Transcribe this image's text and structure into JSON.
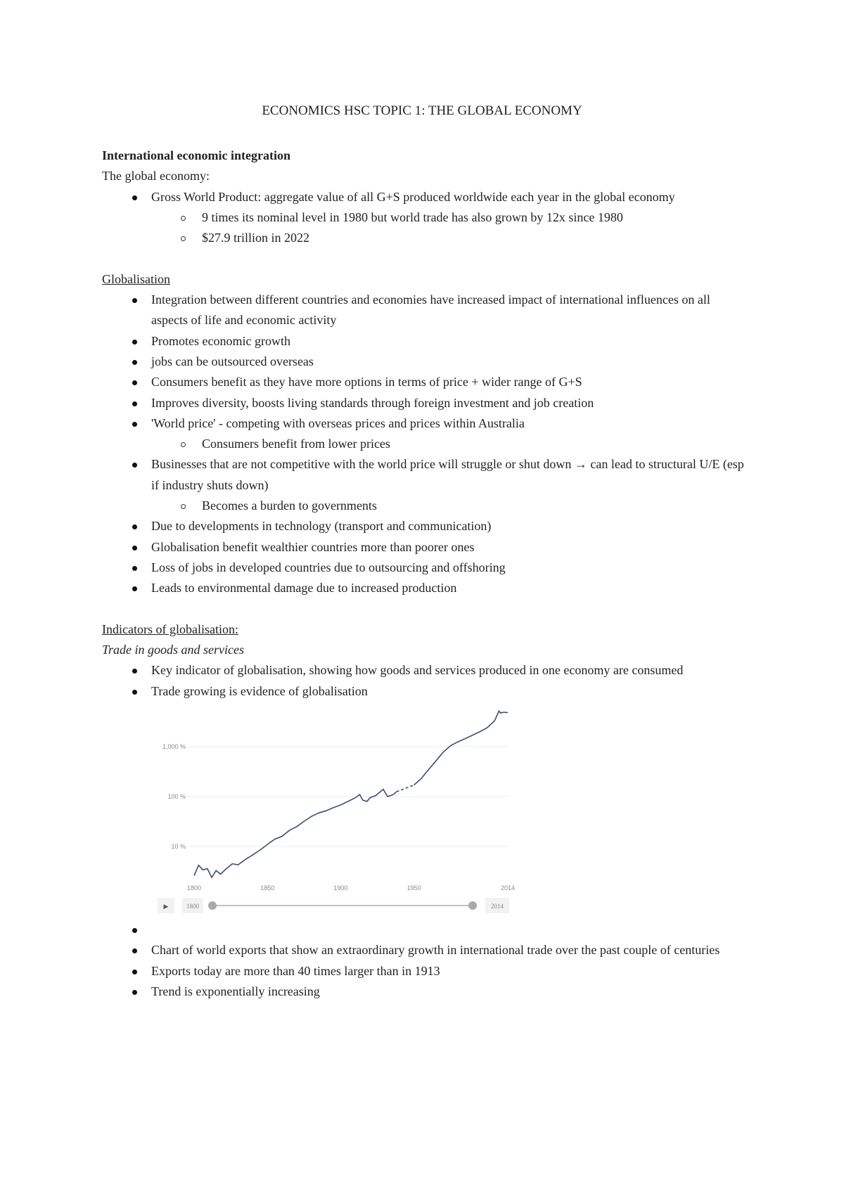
{
  "title": "ECONOMICS HSC TOPIC 1: THE GLOBAL ECONOMY",
  "section1": {
    "heading": "International economic integration",
    "subheading": "The global economy:",
    "bullet": "Gross World Product: aggregate value of all G+S produced worldwide each year in the global economy",
    "subbullets": [
      "9 times its nominal level in 1980 but world trade has also grown by 12x since 1980",
      "$27.9 trillion in 2022"
    ]
  },
  "section2": {
    "heading": "Globalisation",
    "items": [
      {
        "text": "Integration between different countries and economies have increased impact of international influences on all aspects of life and economic activity"
      },
      {
        "text": "Promotes economic growth"
      },
      {
        "text": "jobs can be outsourced overseas"
      },
      {
        "text": "Consumers benefit as they have more options in terms of price + wider range of G+S"
      },
      {
        "text": "Improves diversity, boosts living standards through foreign investment and job creation"
      },
      {
        "text": "'World price' - competing with overseas prices and prices within Australia",
        "sub": "Consumers benefit from lower prices"
      },
      {
        "text": "Businesses that are not competitive with the world price will struggle or shut down → can lead to structural U/E (esp if industry shuts down)",
        "sub": "Becomes a burden to governments"
      },
      {
        "text": "Due to developments in technology (transport and communication)"
      },
      {
        "text": "Globalisation benefit wealthier countries more than poorer ones"
      },
      {
        "text": "Loss of jobs in developed countries due to outsourcing and offshoring"
      },
      {
        "text": "Leads to environmental damage due to increased production"
      }
    ]
  },
  "section3": {
    "heading": "Indicators of globalisation:",
    "subheading": "Trade in goods and services",
    "items": [
      "Key indicator of globalisation, showing how goods and services produced in one economy are consumed",
      "Trade growing is evidence of globalisation"
    ],
    "after_chart": [
      "",
      "Chart of world exports that show an extraordinary growth in international trade over the past couple of centuries",
      "Exports today are more than 40 times larger than in 1913",
      "Trend is exponentially increasing"
    ]
  },
  "chart_data": {
    "type": "line",
    "yscale": "log",
    "ylim": [
      1.5,
      6000
    ],
    "xlim": [
      1800,
      2014
    ],
    "y_ticks": [
      {
        "value": 10,
        "label": "10 %"
      },
      {
        "value": 100,
        "label": "100 %"
      },
      {
        "value": 1000,
        "label": "1,000 %"
      }
    ],
    "x_ticks": [
      "1800",
      "1850",
      "1900",
      "1950",
      "2014"
    ],
    "grid": true,
    "line_color": "#3b4e7e",
    "slider": {
      "play_label": "▶",
      "start": "1800",
      "end": "2014"
    },
    "x": [
      1800,
      1803,
      1806,
      1809,
      1812,
      1815,
      1818,
      1822,
      1826,
      1830,
      1835,
      1840,
      1845,
      1850,
      1855,
      1860,
      1865,
      1870,
      1875,
      1880,
      1885,
      1890,
      1895,
      1900,
      1905,
      1910,
      1913,
      1915,
      1918,
      1920,
      1924,
      1929,
      1932,
      1936,
      1938,
      1950,
      1955,
      1960,
      1965,
      1970,
      1975,
      1980,
      1985,
      1990,
      1995,
      2000,
      2005,
      2008,
      2009,
      2011,
      2014
    ],
    "y": [
      2.6,
      4.2,
      3.4,
      3.6,
      2.4,
      3.3,
      2.8,
      3.6,
      4.5,
      4.3,
      5.5,
      6.8,
      8.5,
      11,
      14,
      16,
      21,
      25,
      32,
      40,
      47,
      52,
      60,
      68,
      80,
      95,
      110,
      85,
      80,
      95,
      105,
      140,
      100,
      110,
      125,
      170,
      230,
      350,
      520,
      780,
      1050,
      1250,
      1450,
      1700,
      2000,
      2400,
      3300,
      5200,
      4700,
      4900,
      4800
    ],
    "dashed_between": [
      1938,
      1950
    ]
  }
}
